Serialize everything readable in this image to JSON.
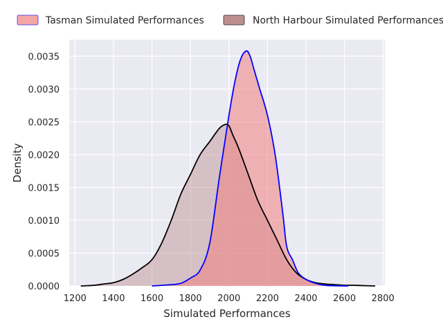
{
  "chart_data": {
    "type": "area",
    "title": "",
    "xlabel": "Simulated Performances",
    "ylabel": "Density",
    "xlim": [
      1170,
      2810
    ],
    "ylim": [
      0,
      0.00375
    ],
    "x_ticks": [
      1200,
      1400,
      1600,
      1800,
      2000,
      2200,
      2400,
      2600,
      2800
    ],
    "y_ticks": [
      0,
      0.0005,
      0.001,
      0.0015,
      0.002,
      0.0025,
      0.003,
      0.0035
    ],
    "x_tick_labels": [
      "1200",
      "1400",
      "1600",
      "1800",
      "2000",
      "2200",
      "2400",
      "2600",
      "2800"
    ],
    "y_tick_labels": [
      "0.0000",
      "0.0005",
      "0.0010",
      "0.0015",
      "0.0020",
      "0.0025",
      "0.0030",
      "0.0035"
    ],
    "grid": true,
    "legend_position": "top",
    "series": [
      {
        "name": "Tasman Simulated Performances",
        "fill_color": "#f08080",
        "line_color": "#0000ff",
        "x": [
          1600,
          1700,
          1750,
          1800,
          1850,
          1900,
          1950,
          2000,
          2030,
          2060,
          2090,
          2110,
          2130,
          2160,
          2200,
          2240,
          2280,
          2300,
          2330,
          2360,
          2400,
          2450,
          2500,
          2550,
          2620
        ],
        "y": [
          0.0,
          2e-05,
          4e-05,
          0.00012,
          0.00024,
          0.00065,
          0.00165,
          0.0026,
          0.0031,
          0.00345,
          0.00358,
          0.0035,
          0.0033,
          0.003,
          0.0026,
          0.002,
          0.0011,
          0.0006,
          0.0004,
          0.0002,
          0.0001,
          4e-05,
          1e-05,
          3e-06,
          0.0
        ]
      },
      {
        "name": "North Harbour Simulated Performances",
        "fill_color": "#bc8f8f",
        "line_color": "#000000",
        "x": [
          1230,
          1300,
          1350,
          1400,
          1450,
          1500,
          1550,
          1600,
          1650,
          1700,
          1750,
          1800,
          1850,
          1900,
          1950,
          1980,
          2000,
          2020,
          2050,
          2100,
          2150,
          2200,
          2250,
          2300,
          2350,
          2400,
          2450,
          2500,
          2550,
          2600,
          2650,
          2700,
          2760
        ],
        "y": [
          0.0,
          1e-05,
          3e-05,
          5e-05,
          0.0001,
          0.00018,
          0.00028,
          0.0004,
          0.00065,
          0.001,
          0.0014,
          0.0017,
          0.002,
          0.0022,
          0.0024,
          0.00246,
          0.00244,
          0.0023,
          0.0021,
          0.0017,
          0.0013,
          0.001,
          0.0007,
          0.0004,
          0.0002,
          0.0001,
          5e-05,
          3e-05,
          2e-05,
          1e-05,
          1e-05,
          5e-06,
          0.0
        ]
      }
    ]
  }
}
